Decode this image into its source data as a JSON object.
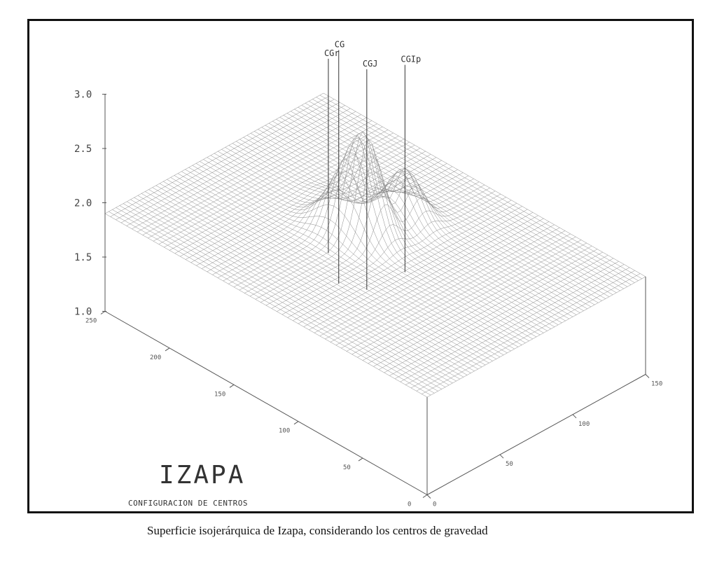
{
  "chart_data": {
    "type": "surface3d",
    "title": "IZAPA",
    "subtitle": "CONFIGURACION DE CENTROS",
    "z_ticks": [
      "1.0",
      "1.5",
      "2.0",
      "2.5",
      "3.0"
    ],
    "zlim": [
      1.0,
      3.0
    ],
    "x_ticks": [
      "0",
      "50",
      "100",
      "150",
      "200",
      "250"
    ],
    "y_ticks": [
      "0",
      "50",
      "100",
      "150"
    ],
    "base_value": 1.9,
    "peaks": [
      {
        "label": "CG",
        "value": 2.25
      },
      {
        "label": "CGJ",
        "value": 2.7
      },
      {
        "label": "CGIp",
        "value": 2.35
      },
      {
        "label": "CGr",
        "value": 1.95
      }
    ],
    "grid": true
  },
  "caption": "Superficie isojerárquica de Izapa, considerando los centros de gravedad"
}
